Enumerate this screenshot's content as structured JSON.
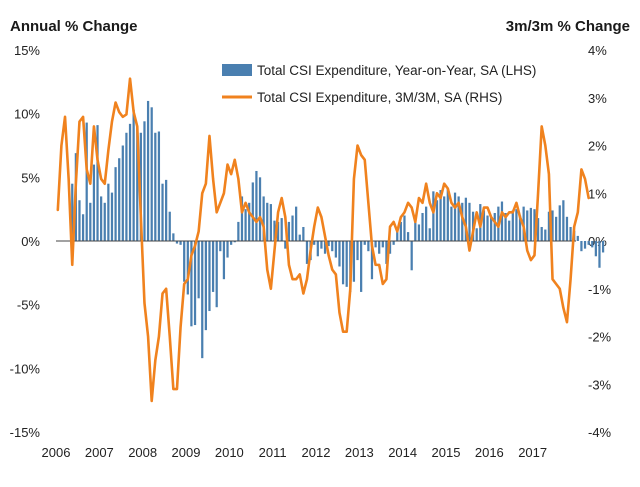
{
  "chart_data": {
    "type": "bar+line",
    "left_axis_title": "Annual % Change",
    "right_axis_title": "3m/3m % Change",
    "left_ylim": [
      -15,
      15
    ],
    "left_ticks": [
      -15,
      -10,
      -5,
      0,
      5,
      10,
      15
    ],
    "left_tick_labels": [
      "-15%",
      "-10%",
      "-5%",
      "0%",
      "5%",
      "10%",
      "15%"
    ],
    "right_ylim": [
      -4,
      4
    ],
    "right_ticks": [
      -4,
      -3,
      -2,
      -1,
      0,
      1,
      2,
      3,
      4
    ],
    "right_tick_labels": [
      "-4%",
      "-3%",
      "-2%",
      "-1%",
      "0%",
      "1%",
      "2%",
      "3%",
      "4%"
    ],
    "x_tick_labels": [
      "2006",
      "2007",
      "2008",
      "2009",
      "2010",
      "2011",
      "2012",
      "2013",
      "2014",
      "2015",
      "2016",
      "2017"
    ],
    "x_start": "2006-01",
    "x_end": "2017-12",
    "grid": false,
    "legend_position": "top-right",
    "series": [
      {
        "name": "Total CSI Expenditure, Year-on-Year, SA (LHS)",
        "kind": "bar",
        "axis": "left",
        "color": "#4a7fb0",
        "x_start": "2006-05",
        "values": [
          4.5,
          6.9,
          3.2,
          2.1,
          9.3,
          3.0,
          6.0,
          9.1,
          3.5,
          3.0,
          4.5,
          3.8,
          5.8,
          6.5,
          7.5,
          8.5,
          9.2,
          10.3,
          9.0,
          8.5,
          9.4,
          11.0,
          10.5,
          8.5,
          8.6,
          4.5,
          4.8,
          2.3,
          0.6,
          -0.2,
          -0.3,
          -3.2,
          -4.2,
          -6.7,
          -6.6,
          -4.5,
          -9.2,
          -7.0,
          -5.5,
          -4.0,
          -5.2,
          -0.8,
          -3.0,
          -1.3,
          -0.3,
          -0.1,
          1.5,
          3.5,
          2.5,
          3.0,
          4.6,
          5.5,
          5.0,
          3.5,
          3.0,
          2.9,
          1.6,
          1.5,
          1.8,
          -0.6,
          1.5,
          2.0,
          2.7,
          0.5,
          1.1,
          -1.8,
          -1.5,
          -0.3,
          -1.2,
          -0.6,
          -1.0,
          -0.4,
          -0.8,
          -1.3,
          -2.0,
          -3.4,
          -3.6,
          -4.0,
          -3.2,
          -1.5,
          -4.0,
          -0.3,
          -0.8,
          -3.0,
          -0.5,
          -1.0,
          -0.5,
          -1.8,
          -1.0,
          -0.3,
          1.0,
          1.5,
          2.0,
          0.7,
          -2.3,
          2.0,
          1.3,
          2.2,
          2.7,
          1.0,
          3.9,
          3.2,
          4.0,
          3.5,
          4.1,
          2.7,
          3.8,
          3.5,
          3.0,
          3.4,
          3.0,
          2.3,
          1.0,
          2.9,
          2.4,
          2.0,
          1.9,
          2.2,
          2.7,
          3.1,
          2.2,
          1.6,
          2.4,
          2.5,
          2.0,
          2.7,
          2.4,
          2.6,
          2.5,
          1.8,
          1.1,
          0.9,
          2.3,
          2.4,
          1.9,
          2.8,
          3.2,
          1.9,
          1.1,
          0.8,
          0.4,
          -0.8,
          -0.6,
          -0.3,
          -0.5,
          -1.2,
          -2.1,
          -0.9
        ]
      },
      {
        "name": "Total CSI Expenditure, 3M/3M, SA (RHS)",
        "kind": "line",
        "axis": "right",
        "color": "#f0821e",
        "x_start": "2006-01",
        "values": [
          0.65,
          2.0,
          2.6,
          1.3,
          -0.5,
          1.2,
          2.5,
          2.6,
          1.5,
          1.2,
          2.4,
          1.7,
          1.3,
          1.2,
          1.9,
          2.5,
          2.9,
          2.7,
          2.6,
          2.65,
          3.4,
          2.7,
          2.4,
          0.5,
          -1.3,
          -2.0,
          -3.35,
          -2.5,
          -2.0,
          -1.1,
          -1.0,
          -2.0,
          -3.1,
          -3.1,
          -1.8,
          -0.9,
          -0.8,
          -0.3,
          -0.1,
          0.2,
          1.0,
          1.2,
          2.2,
          1.3,
          0.6,
          0.8,
          1.0,
          1.6,
          1.4,
          1.7,
          1.3,
          0.6,
          0.8,
          0.6,
          0.5,
          0.4,
          0.5,
          0.3,
          -0.6,
          -1.0,
          -0.2,
          0.6,
          0.9,
          0.5,
          -0.5,
          -0.8,
          -0.8,
          -0.7,
          -1.1,
          -0.8,
          -0.2,
          0.3,
          0.7,
          0.5,
          0.1,
          -0.3,
          -0.6,
          -0.7,
          -1.5,
          -1.9,
          -1.9,
          -1.0,
          1.3,
          2.0,
          1.8,
          1.7,
          0.8,
          -0.1,
          -0.5,
          -0.5,
          -0.9,
          -0.8,
          0.3,
          0.4,
          0.2,
          0.5,
          0.6,
          0.8,
          0.7,
          0.4,
          0.9,
          0.8,
          1.2,
          0.8,
          0.6,
          1.0,
          0.9,
          1.2,
          1.1,
          0.8,
          0.7,
          0.8,
          0.5,
          0.3,
          -0.2,
          0.2,
          0.6,
          0.3,
          0.7,
          0.7,
          0.5,
          0.4,
          0.3,
          0.6,
          0.5,
          0.6,
          0.6,
          0.8,
          0.5,
          0.3,
          -0.2,
          -0.4,
          -0.3,
          1.0,
          2.4,
          2.0,
          1.4,
          -0.8,
          -0.9,
          -1.0,
          -1.4,
          -1.7,
          -0.8,
          0.3,
          0.6,
          1.5,
          1.3,
          0.9
        ]
      }
    ]
  },
  "colors": {
    "bars": "#4a7fb0",
    "line": "#f0821e",
    "axis": "#444444",
    "text": "#222222"
  }
}
